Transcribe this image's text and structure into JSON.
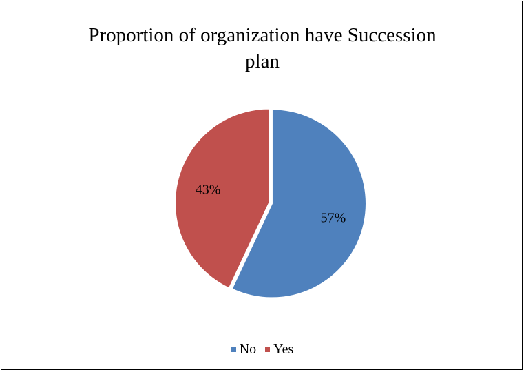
{
  "chart_data": {
    "type": "pie",
    "title_lines": [
      "Proportion of organization have Succession",
      "plan"
    ],
    "slices": [
      {
        "label": "No",
        "value": 57,
        "data_label": "57%",
        "color": "#4F81BD"
      },
      {
        "label": "Yes",
        "value": 43,
        "data_label": "43%",
        "color": "#C0504D"
      }
    ],
    "legend_position": "bottom"
  }
}
